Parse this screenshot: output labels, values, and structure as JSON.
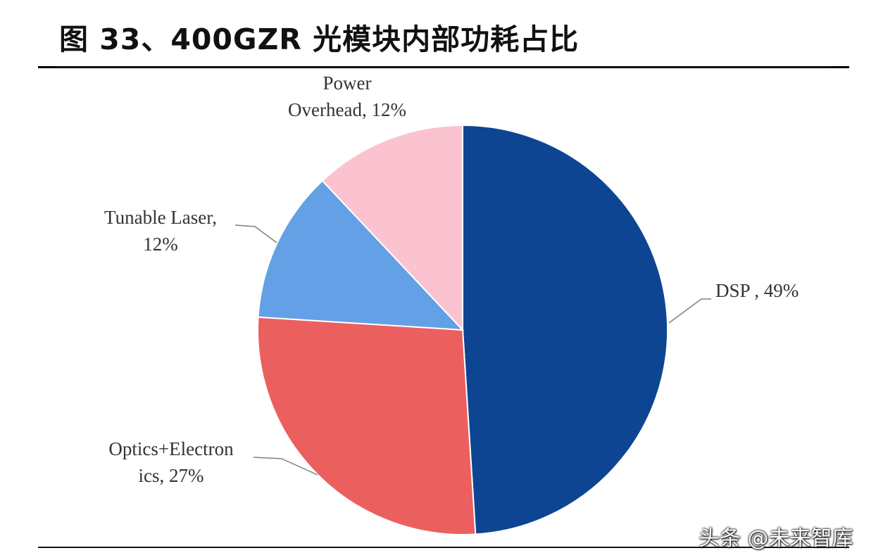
{
  "header": {
    "title": "图 33、400GZR 光模块内部功耗占比"
  },
  "chart_data": {
    "type": "pie",
    "title": "",
    "start_angle_deg": 0,
    "direction": "clockwise",
    "slices": [
      {
        "name": "DSP",
        "value": 49,
        "color": "#0d4592",
        "label_lines": [
          "DSP , 49%"
        ]
      },
      {
        "name": "Optics+Electronics",
        "value": 27,
        "color": "#ec5f5f",
        "label_lines": [
          "Optics+Electron",
          "ics, 27%"
        ]
      },
      {
        "name": "Tunable Laser",
        "value": 12,
        "color": "#64a0e6",
        "label_lines": [
          "Tunable Laser,",
          "12%"
        ]
      },
      {
        "name": "Power Overhead",
        "value": 12,
        "color": "#fbc3cf",
        "label_lines": [
          "Power",
          "Overhead, 12%"
        ]
      }
    ]
  },
  "watermark": {
    "text": "头条 @未来智库"
  }
}
